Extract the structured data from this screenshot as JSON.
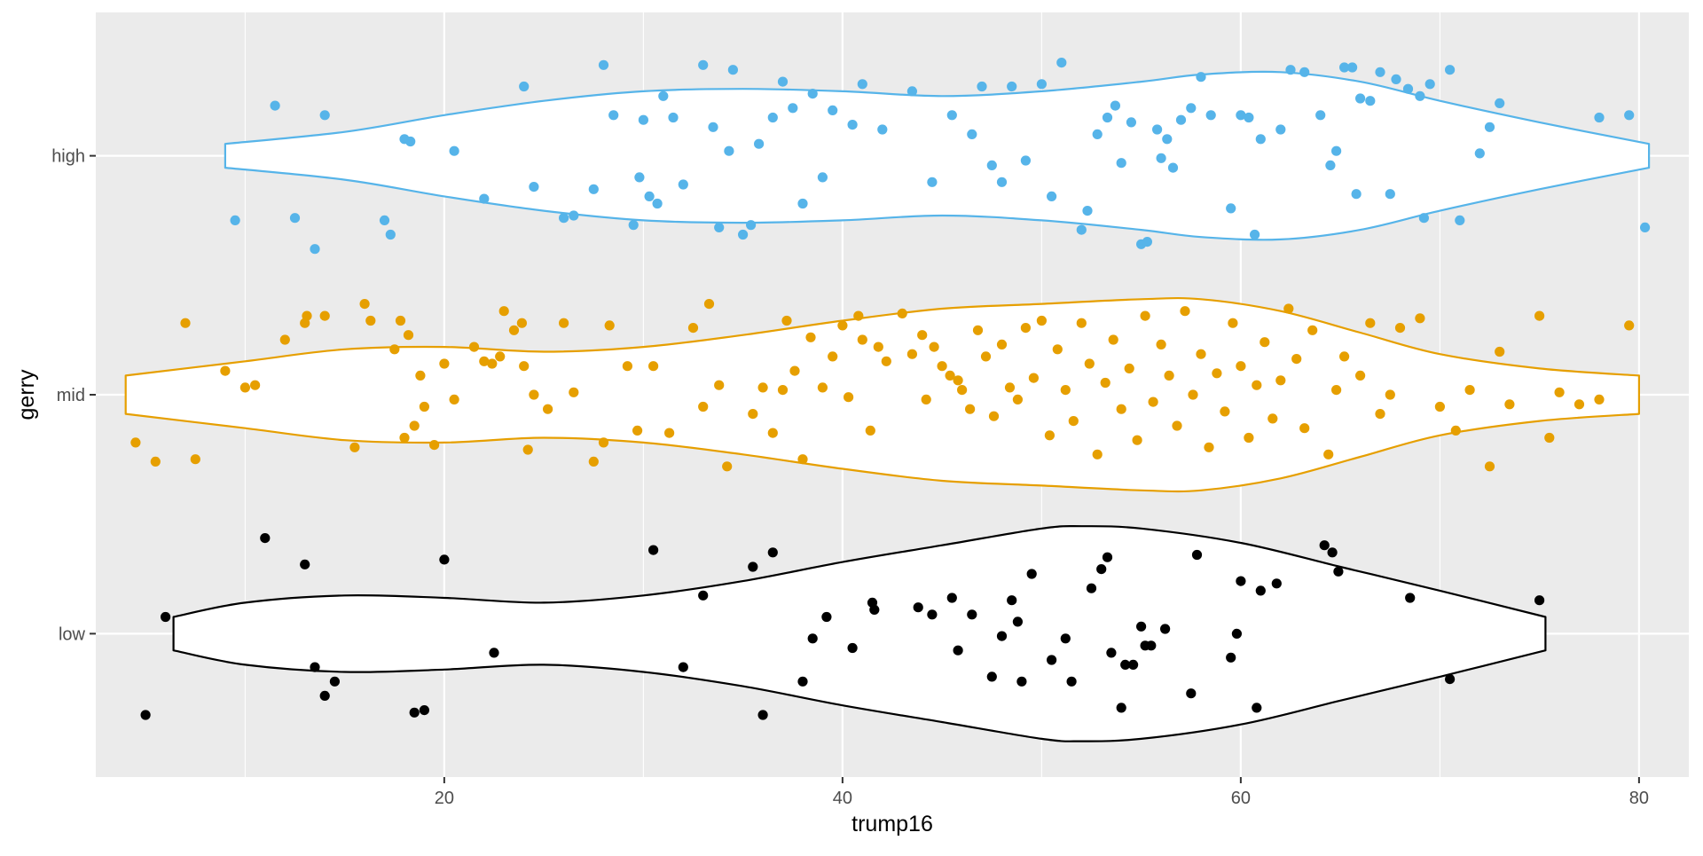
{
  "chart_data": {
    "type": "violin",
    "xlabel": "trump16",
    "ylabel": "gerry",
    "xlim": [
      2.5,
      82.5
    ],
    "x_ticks": [
      20,
      40,
      60,
      80
    ],
    "x_minor_ticks": [
      10,
      30,
      50,
      70
    ],
    "categories": [
      "low",
      "mid",
      "high"
    ],
    "grid": true,
    "legend": "none",
    "colors": {
      "low": "#000000",
      "mid": "#E69F00",
      "high": "#56B4E9",
      "panel": "#EBEBEB",
      "grid": "#FFFFFF"
    },
    "violins": [
      {
        "group": "low",
        "range": [
          6.4,
          75.3
        ],
        "profile": [
          [
            6.4,
            0.07
          ],
          [
            10,
            0.13
          ],
          [
            15,
            0.16
          ],
          [
            20,
            0.15
          ],
          [
            25,
            0.13
          ],
          [
            30,
            0.16
          ],
          [
            35,
            0.22
          ],
          [
            40,
            0.3
          ],
          [
            45,
            0.37
          ],
          [
            50,
            0.44
          ],
          [
            52,
            0.45
          ],
          [
            55,
            0.44
          ],
          [
            60,
            0.38
          ],
          [
            65,
            0.28
          ],
          [
            70,
            0.18
          ],
          [
            75.3,
            0.07
          ]
        ]
      },
      {
        "group": "mid",
        "range": [
          4.0,
          80.0
        ],
        "profile": [
          [
            4.0,
            0.08
          ],
          [
            10,
            0.14
          ],
          [
            15,
            0.19
          ],
          [
            20,
            0.2
          ],
          [
            25,
            0.18
          ],
          [
            30,
            0.2
          ],
          [
            35,
            0.25
          ],
          [
            40,
            0.31
          ],
          [
            45,
            0.36
          ],
          [
            50,
            0.38
          ],
          [
            55,
            0.4
          ],
          [
            58,
            0.4
          ],
          [
            62,
            0.35
          ],
          [
            66,
            0.26
          ],
          [
            70,
            0.17
          ],
          [
            75,
            0.11
          ],
          [
            80,
            0.08
          ]
        ]
      },
      {
        "group": "high",
        "range": [
          9.0,
          80.5
        ],
        "profile": [
          [
            9.0,
            0.05
          ],
          [
            15,
            0.1
          ],
          [
            20,
            0.17
          ],
          [
            25,
            0.23
          ],
          [
            30,
            0.27
          ],
          [
            35,
            0.28
          ],
          [
            40,
            0.27
          ],
          [
            45,
            0.25
          ],
          [
            50,
            0.27
          ],
          [
            55,
            0.31
          ],
          [
            58,
            0.34
          ],
          [
            62,
            0.35
          ],
          [
            66,
            0.31
          ],
          [
            70,
            0.23
          ],
          [
            75,
            0.14
          ],
          [
            80.5,
            0.05
          ]
        ]
      }
    ],
    "points": {
      "low": [
        [
          5,
          -0.34
        ],
        [
          6,
          0.07
        ],
        [
          11,
          0.4
        ],
        [
          13,
          0.29
        ],
        [
          13.5,
          -0.14
        ],
        [
          14,
          -0.26
        ],
        [
          14.5,
          -0.2
        ],
        [
          18.5,
          -0.33
        ],
        [
          19,
          -0.32
        ],
        [
          20,
          0.31
        ],
        [
          22.5,
          -0.08
        ],
        [
          30.5,
          0.35
        ],
        [
          32,
          -0.14
        ],
        [
          33,
          0.16
        ],
        [
          35.5,
          0.28
        ],
        [
          36,
          -0.34
        ],
        [
          36.5,
          0.34
        ],
        [
          38,
          -0.2
        ],
        [
          38.5,
          -0.02
        ],
        [
          39.2,
          0.07
        ],
        [
          40.5,
          -0.06
        ],
        [
          41.5,
          0.13
        ],
        [
          41.6,
          0.1
        ],
        [
          43.8,
          0.11
        ],
        [
          44.5,
          0.08
        ],
        [
          45.5,
          0.15
        ],
        [
          45.8,
          -0.07
        ],
        [
          46.5,
          0.08
        ],
        [
          47.5,
          -0.18
        ],
        [
          48,
          -0.01
        ],
        [
          48.5,
          0.14
        ],
        [
          48.8,
          0.05
        ],
        [
          49,
          -0.2
        ],
        [
          49.5,
          0.25
        ],
        [
          50.5,
          -0.11
        ],
        [
          51.2,
          -0.02
        ],
        [
          51.5,
          -0.2
        ],
        [
          52.5,
          0.19
        ],
        [
          53,
          0.27
        ],
        [
          53.3,
          0.32
        ],
        [
          53.5,
          -0.08
        ],
        [
          54,
          -0.31
        ],
        [
          54.2,
          -0.13
        ],
        [
          54.6,
          -0.13
        ],
        [
          55,
          0.03
        ],
        [
          55.5,
          -0.05
        ],
        [
          55.2,
          -0.05
        ],
        [
          56.2,
          0.02
        ],
        [
          57.5,
          -0.25
        ],
        [
          57.8,
          0.33
        ],
        [
          59.5,
          -0.1
        ],
        [
          59.8,
          0.0
        ],
        [
          60,
          0.22
        ],
        [
          60.8,
          -0.31
        ],
        [
          61,
          0.18
        ],
        [
          61.8,
          0.21
        ],
        [
          64.2,
          0.37
        ],
        [
          64.6,
          0.34
        ],
        [
          64.9,
          0.26
        ],
        [
          68.5,
          0.15
        ],
        [
          70.5,
          -0.19
        ],
        [
          75,
          0.14
        ]
      ],
      "mid": [
        [
          4.5,
          -0.2
        ],
        [
          5.5,
          -0.28
        ],
        [
          7,
          0.3
        ],
        [
          7.5,
          -0.27
        ],
        [
          9,
          0.1
        ],
        [
          10,
          0.03
        ],
        [
          10.5,
          0.04
        ],
        [
          12,
          0.23
        ],
        [
          13,
          0.3
        ],
        [
          13.1,
          0.33
        ],
        [
          14,
          0.33
        ],
        [
          15.5,
          -0.22
        ],
        [
          16,
          0.38
        ],
        [
          16.3,
          0.31
        ],
        [
          17.5,
          0.19
        ],
        [
          17.8,
          0.31
        ],
        [
          18,
          -0.18
        ],
        [
          18.2,
          0.25
        ],
        [
          18.5,
          -0.13
        ],
        [
          18.8,
          0.08
        ],
        [
          19,
          -0.05
        ],
        [
          19.5,
          -0.21
        ],
        [
          20,
          0.13
        ],
        [
          20.5,
          -0.02
        ],
        [
          21.5,
          0.2
        ],
        [
          22,
          0.14
        ],
        [
          22.4,
          0.13
        ],
        [
          22.8,
          0.16
        ],
        [
          23,
          0.35
        ],
        [
          23.5,
          0.27
        ],
        [
          23.9,
          0.3
        ],
        [
          24,
          0.12
        ],
        [
          24.2,
          -0.23
        ],
        [
          24.5,
          0.0
        ],
        [
          25.2,
          -0.06
        ],
        [
          26,
          0.3
        ],
        [
          26.5,
          0.01
        ],
        [
          27.5,
          -0.28
        ],
        [
          28,
          -0.2
        ],
        [
          28.3,
          0.29
        ],
        [
          29.2,
          0.12
        ],
        [
          29.7,
          -0.15
        ],
        [
          30.5,
          0.12
        ],
        [
          31.3,
          -0.16
        ],
        [
          32.5,
          0.28
        ],
        [
          33,
          -0.05
        ],
        [
          33.3,
          0.38
        ],
        [
          33.8,
          0.04
        ],
        [
          34.2,
          -0.3
        ],
        [
          35.5,
          -0.08
        ],
        [
          36,
          0.03
        ],
        [
          36.5,
          -0.16
        ],
        [
          37,
          0.02
        ],
        [
          37.2,
          0.31
        ],
        [
          37.6,
          0.1
        ],
        [
          38,
          -0.27
        ],
        [
          38.4,
          0.24
        ],
        [
          39,
          0.03
        ],
        [
          39.5,
          0.16
        ],
        [
          40,
          0.29
        ],
        [
          40.3,
          -0.01
        ],
        [
          40.8,
          0.33
        ],
        [
          41,
          0.23
        ],
        [
          41.4,
          -0.15
        ],
        [
          41.8,
          0.2
        ],
        [
          42.2,
          0.14
        ],
        [
          43,
          0.34
        ],
        [
          43.5,
          0.17
        ],
        [
          44,
          0.25
        ],
        [
          44.2,
          -0.02
        ],
        [
          44.6,
          0.2
        ],
        [
          45,
          0.12
        ],
        [
          45.4,
          0.08
        ],
        [
          45.8,
          0.06
        ],
        [
          46,
          0.02
        ],
        [
          46.4,
          -0.06
        ],
        [
          46.8,
          0.27
        ],
        [
          47.2,
          0.16
        ],
        [
          47.6,
          -0.09
        ],
        [
          48,
          0.21
        ],
        [
          48.4,
          0.03
        ],
        [
          48.8,
          -0.02
        ],
        [
          49.2,
          0.28
        ],
        [
          49.6,
          0.07
        ],
        [
          50,
          0.31
        ],
        [
          50.4,
          -0.17
        ],
        [
          50.8,
          0.19
        ],
        [
          51.2,
          0.02
        ],
        [
          51.6,
          -0.11
        ],
        [
          52,
          0.3
        ],
        [
          52.4,
          0.13
        ],
        [
          52.8,
          -0.25
        ],
        [
          53.2,
          0.05
        ],
        [
          53.6,
          0.23
        ],
        [
          54,
          -0.06
        ],
        [
          54.4,
          0.11
        ],
        [
          54.8,
          -0.19
        ],
        [
          55.2,
          0.33
        ],
        [
          55.6,
          -0.03
        ],
        [
          56,
          0.21
        ],
        [
          56.4,
          0.08
        ],
        [
          56.8,
          -0.13
        ],
        [
          57.2,
          0.35
        ],
        [
          57.6,
          0.0
        ],
        [
          58,
          0.17
        ],
        [
          58.4,
          -0.22
        ],
        [
          58.8,
          0.09
        ],
        [
          59.2,
          -0.07
        ],
        [
          59.6,
          0.3
        ],
        [
          60,
          0.12
        ],
        [
          60.4,
          -0.18
        ],
        [
          60.8,
          0.04
        ],
        [
          61.2,
          0.22
        ],
        [
          61.6,
          -0.1
        ],
        [
          62,
          0.06
        ],
        [
          62.4,
          0.36
        ],
        [
          62.8,
          0.15
        ],
        [
          63.2,
          -0.14
        ],
        [
          63.6,
          0.27
        ],
        [
          64.4,
          -0.25
        ],
        [
          64.8,
          0.02
        ],
        [
          65.2,
          0.16
        ],
        [
          66,
          0.08
        ],
        [
          66.5,
          0.3
        ],
        [
          67,
          -0.08
        ],
        [
          67.5,
          0.0
        ],
        [
          68,
          0.28
        ],
        [
          69,
          0.32
        ],
        [
          70,
          -0.05
        ],
        [
          70.8,
          -0.15
        ],
        [
          71.5,
          0.02
        ],
        [
          72.5,
          -0.3
        ],
        [
          73,
          0.18
        ],
        [
          73.5,
          -0.04
        ],
        [
          75,
          0.33
        ],
        [
          75.5,
          -0.18
        ],
        [
          76,
          0.01
        ],
        [
          77,
          -0.04
        ],
        [
          78,
          -0.02
        ],
        [
          79.5,
          0.29
        ]
      ],
      "high": [
        [
          9.5,
          -0.27
        ],
        [
          11.5,
          0.21
        ],
        [
          12.5,
          -0.26
        ],
        [
          13.5,
          -0.39
        ],
        [
          14,
          0.17
        ],
        [
          17,
          -0.27
        ],
        [
          17.3,
          -0.33
        ],
        [
          18,
          0.07
        ],
        [
          18.3,
          0.06
        ],
        [
          20.5,
          0.02
        ],
        [
          22,
          -0.18
        ],
        [
          24,
          0.29
        ],
        [
          24.5,
          -0.13
        ],
        [
          26,
          -0.26
        ],
        [
          26.5,
          -0.25
        ],
        [
          27.5,
          -0.14
        ],
        [
          28,
          0.38
        ],
        [
          28.5,
          0.17
        ],
        [
          29.5,
          -0.29
        ],
        [
          29.8,
          -0.09
        ],
        [
          30,
          0.15
        ],
        [
          30.3,
          -0.17
        ],
        [
          30.7,
          -0.2
        ],
        [
          31,
          0.25
        ],
        [
          31.5,
          0.16
        ],
        [
          32,
          -0.12
        ],
        [
          33,
          0.38
        ],
        [
          33.5,
          0.12
        ],
        [
          33.8,
          -0.3
        ],
        [
          34.3,
          0.02
        ],
        [
          34.5,
          0.36
        ],
        [
          35,
          -0.33
        ],
        [
          35.4,
          -0.29
        ],
        [
          35.8,
          0.05
        ],
        [
          36.5,
          0.16
        ],
        [
          37,
          0.31
        ],
        [
          37.5,
          0.2
        ],
        [
          38,
          -0.2
        ],
        [
          38.5,
          0.26
        ],
        [
          39,
          -0.09
        ],
        [
          39.5,
          0.19
        ],
        [
          40.5,
          0.13
        ],
        [
          41,
          0.3
        ],
        [
          42,
          0.11
        ],
        [
          43.5,
          0.27
        ],
        [
          44.5,
          -0.11
        ],
        [
          45.5,
          0.17
        ],
        [
          46.5,
          0.09
        ],
        [
          47,
          0.29
        ],
        [
          47.5,
          -0.04
        ],
        [
          48,
          -0.11
        ],
        [
          48.5,
          0.29
        ],
        [
          49.2,
          -0.02
        ],
        [
          50,
          0.3
        ],
        [
          50.5,
          -0.17
        ],
        [
          51,
          0.39
        ],
        [
          52,
          -0.31
        ],
        [
          52.3,
          -0.23
        ],
        [
          52.8,
          0.09
        ],
        [
          53.3,
          0.16
        ],
        [
          53.7,
          0.21
        ],
        [
          54,
          -0.03
        ],
        [
          54.5,
          0.14
        ],
        [
          55,
          -0.37
        ],
        [
          55.3,
          -0.36
        ],
        [
          55.8,
          0.11
        ],
        [
          56,
          -0.01
        ],
        [
          56.3,
          0.07
        ],
        [
          56.6,
          -0.05
        ],
        [
          57,
          0.15
        ],
        [
          57.5,
          0.2
        ],
        [
          58,
          0.33
        ],
        [
          58.5,
          0.17
        ],
        [
          59.5,
          -0.22
        ],
        [
          60,
          0.17
        ],
        [
          60.4,
          0.16
        ],
        [
          60.7,
          -0.33
        ],
        [
          61,
          0.07
        ],
        [
          62,
          0.11
        ],
        [
          62.5,
          0.36
        ],
        [
          63.2,
          0.35
        ],
        [
          64,
          0.17
        ],
        [
          64.5,
          -0.04
        ],
        [
          64.8,
          0.02
        ],
        [
          65.2,
          0.37
        ],
        [
          65.6,
          0.37
        ],
        [
          65.8,
          -0.16
        ],
        [
          66,
          0.24
        ],
        [
          66.5,
          0.23
        ],
        [
          67,
          0.35
        ],
        [
          67.5,
          -0.16
        ],
        [
          67.8,
          0.32
        ],
        [
          68.4,
          0.28
        ],
        [
          69,
          0.25
        ],
        [
          69.2,
          -0.26
        ],
        [
          69.5,
          0.3
        ],
        [
          70.5,
          0.36
        ],
        [
          71,
          -0.27
        ],
        [
          72,
          0.01
        ],
        [
          72.5,
          0.12
        ],
        [
          73,
          0.22
        ],
        [
          78,
          0.16
        ],
        [
          79.5,
          0.17
        ],
        [
          80.3,
          -0.3
        ]
      ]
    }
  }
}
